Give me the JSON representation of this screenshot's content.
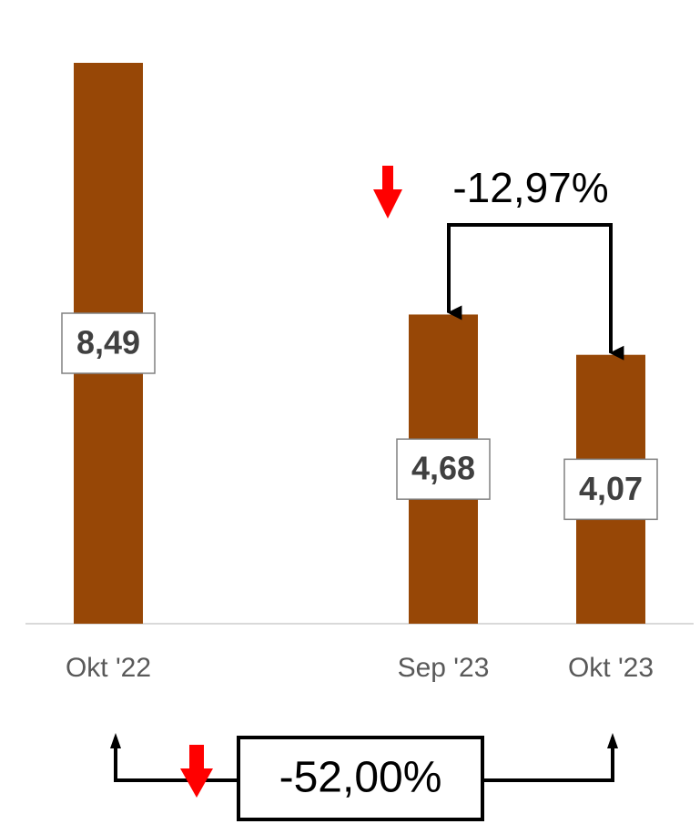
{
  "chart_data": {
    "type": "bar",
    "categories": [
      "Okt '22",
      null,
      "Sep '23",
      "Okt '23"
    ],
    "values": [
      8.49,
      null,
      4.68,
      4.07
    ],
    "value_labels": [
      "8,49",
      null,
      "4,68",
      "4,07"
    ],
    "color": "#974706",
    "annotations": [
      "-12,97%",
      "-52,00%"
    ]
  }
}
